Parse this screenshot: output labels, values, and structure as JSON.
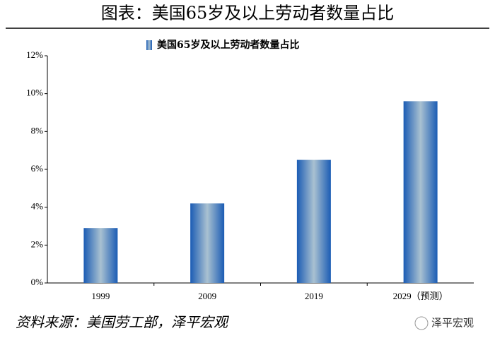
{
  "page_title": "图表：美国65岁及以上劳动者数量占比",
  "chart_data": {
    "type": "bar",
    "categories": [
      "1999",
      "2009",
      "2019",
      "2029（预测）"
    ],
    "series": [
      {
        "name": "美国65岁及以上劳动者数量占比",
        "color": "#1b5cb4",
        "values": [
          2.9,
          4.2,
          6.5,
          9.6
        ]
      }
    ],
    "ylim": [
      0,
      12
    ],
    "yticks": [
      {
        "value": 0,
        "label": "0%"
      },
      {
        "value": 2,
        "label": "2%"
      },
      {
        "value": 4,
        "label": "4%"
      },
      {
        "value": 6,
        "label": "6%"
      },
      {
        "value": 8,
        "label": "8%"
      },
      {
        "value": 10,
        "label": "10%"
      },
      {
        "value": 12,
        "label": "12%"
      }
    ],
    "grid": false,
    "legend": "top"
  },
  "source": "资料来源：美国劳工部，泽平宏观",
  "watermark": "泽平宏观"
}
